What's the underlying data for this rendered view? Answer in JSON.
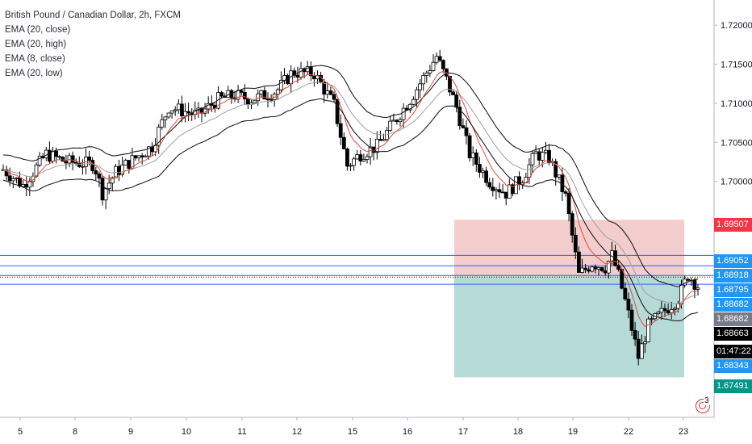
{
  "legend": {
    "title": "British Pound / Canadian Dollar, 2h, FXCM",
    "indicators": [
      "EMA (20, close)",
      "EMA (20, high)",
      "EMA (8, close)",
      "EMA (20, low)"
    ]
  },
  "colors": {
    "up_candle": "#ffffff",
    "down_candle": "#000000",
    "ema_20_close": "#a0a0a0",
    "ema_20_high": "#1e1e1e",
    "ema_8_close": "#e04b3c",
    "ema_20_low": "#1e1e1e",
    "horizontal_line": "#2962ff",
    "stop_zone": "#f2c6c6",
    "target_zone": "#aed6d2"
  },
  "price_badges": [
    {
      "value": "1.69507",
      "price": 1.69507,
      "color": "#f23645"
    },
    {
      "value": "1.69052",
      "price": 1.69052,
      "color": "#2196f3"
    },
    {
      "value": "1.68918",
      "price": 1.68918,
      "color": "#2196f3"
    },
    {
      "value": "1.68795",
      "price": 1.68795,
      "color": "#2196f3"
    },
    {
      "value": "1.68682",
      "price": 1.68682,
      "color": "#2196f3"
    },
    {
      "value": "1.68682",
      "price": 1.68682,
      "color": "#787b86"
    },
    {
      "value": "1.68663",
      "price": 1.68663,
      "color": "#000000"
    },
    {
      "value": "01:47:22",
      "price": null,
      "color": "#000000"
    },
    {
      "value": "1.68343",
      "price": 1.68343,
      "color": "#2196f3"
    },
    {
      "value": "1.67491",
      "price": 1.67491,
      "color": "#009688"
    }
  ],
  "alert_count": "3",
  "chart_data": {
    "type": "candlestick",
    "title": "British Pound / Canadian Dollar, 2h, FXCM",
    "series": [
      {
        "name": "EMA (20, close)"
      },
      {
        "name": "EMA (20, high)"
      },
      {
        "name": "EMA (8, close)"
      },
      {
        "name": "EMA (20, low)"
      }
    ],
    "y_ticks": [
      "1.72000",
      "1.71500",
      "1.71000",
      "1.70500",
      "1.70000"
    ],
    "y_tick_values": [
      1.72,
      1.715,
      1.71,
      1.705,
      1.7
    ],
    "x_ticks": [
      "5",
      "8",
      "9",
      "10",
      "11",
      "12",
      "15",
      "16",
      "17",
      "18",
      "19",
      "22",
      "23"
    ],
    "ylim": [
      1.6705,
      1.7225
    ],
    "horizontal_lines": [
      1.69052,
      1.68918,
      1.68795,
      1.68682
    ],
    "position": {
      "entry": 1.68795,
      "stop": 1.69507,
      "target": 1.67491
    },
    "waypoints": [
      [
        0,
        1.7015
      ],
      [
        12,
        1.6995
      ],
      [
        26,
        1.7035
      ],
      [
        38,
        1.7025
      ],
      [
        55,
        1.7022
      ],
      [
        60,
        1.6985
      ],
      [
        68,
        1.7012
      ],
      [
        90,
        1.7045
      ],
      [
        100,
        1.7095
      ],
      [
        118,
        1.7085
      ],
      [
        130,
        1.7105
      ],
      [
        140,
        1.711
      ],
      [
        150,
        1.7105
      ],
      [
        165,
        1.7115
      ],
      [
        175,
        1.714
      ],
      [
        188,
        1.7138
      ],
      [
        200,
        1.7098
      ],
      [
        208,
        1.702
      ],
      [
        216,
        1.7035
      ],
      [
        226,
        1.7045
      ],
      [
        236,
        1.7075
      ],
      [
        246,
        1.7105
      ],
      [
        262,
        1.716
      ],
      [
        268,
        1.713
      ],
      [
        274,
        1.7095
      ],
      [
        282,
        1.7035
      ],
      [
        294,
        1.7
      ],
      [
        304,
        1.6985
      ],
      [
        314,
        1.7005
      ],
      [
        322,
        1.7035
      ],
      [
        330,
        1.703
      ],
      [
        340,
        1.698
      ],
      [
        348,
        1.688
      ],
      [
        356,
        1.6895
      ],
      [
        364,
        1.689
      ],
      [
        368,
        1.6905
      ],
      [
        372,
        1.688
      ],
      [
        378,
        1.683
      ],
      [
        384,
        1.6775
      ],
      [
        390,
        1.6815
      ],
      [
        400,
        1.6835
      ],
      [
        408,
        1.685
      ],
      [
        414,
        1.688
      ],
      [
        420,
        1.6866
      ]
    ]
  }
}
